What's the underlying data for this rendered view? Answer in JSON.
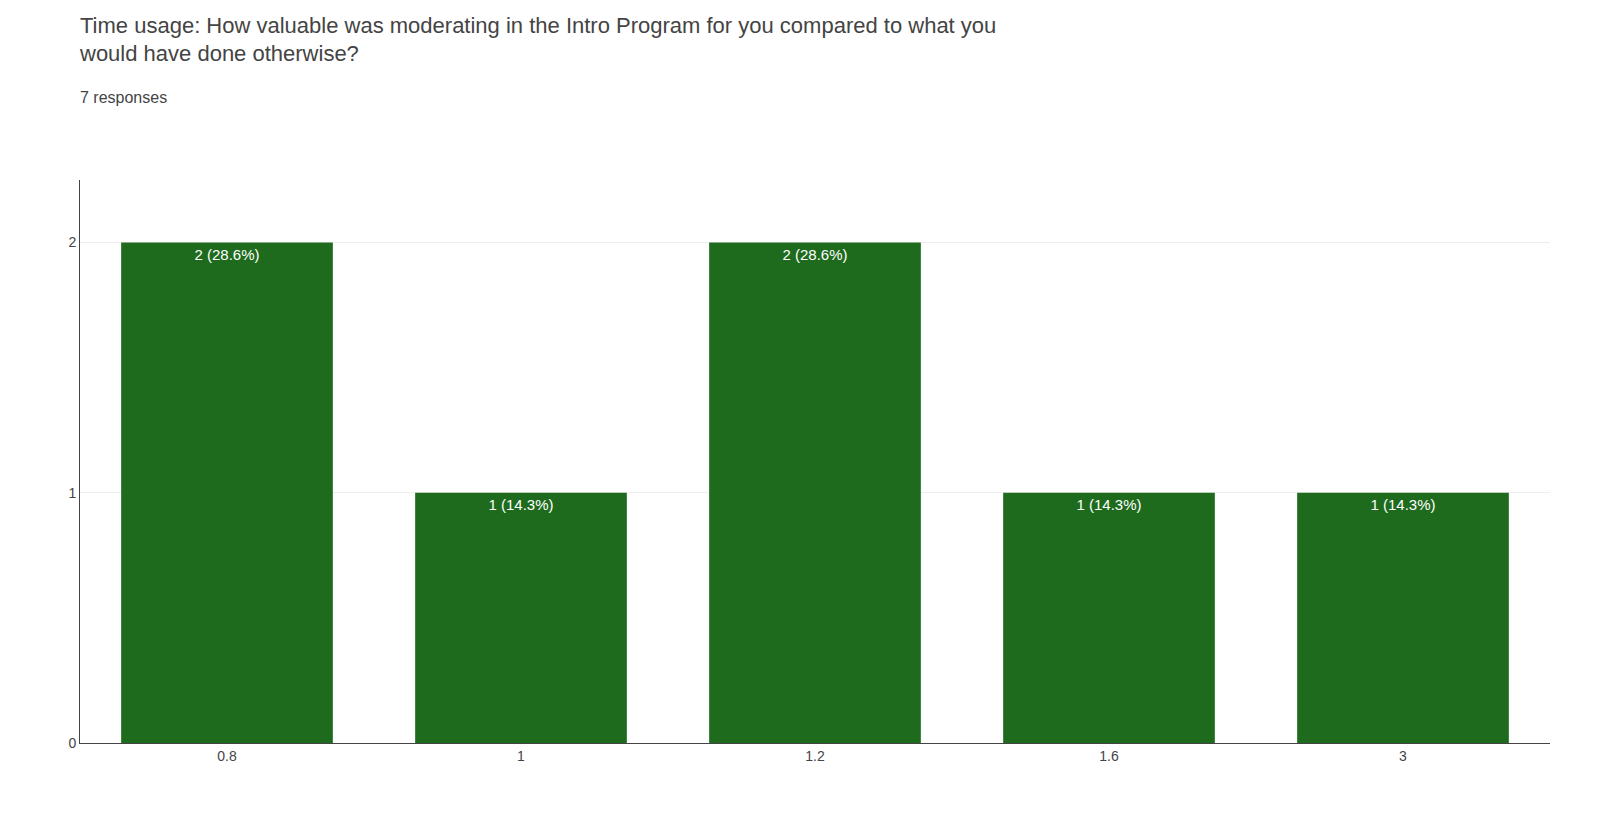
{
  "chart_data": {
    "type": "bar",
    "title": "Time usage: How valuable was moderating in the Intro Program for you compared to what you\nwould have done otherwise?",
    "subtitle": "7 responses",
    "categories": [
      "0.8",
      "1",
      "1.2",
      "1.6",
      "3"
    ],
    "values": [
      2,
      1,
      2,
      1,
      1
    ],
    "value_labels": [
      "2 (28.6%)",
      "1 (14.3%)",
      "2 (28.6%)",
      "1 (14.3%)",
      "1 (14.3%)"
    ],
    "data_labels": true,
    "color": "#1e6b1e",
    "ylim": [
      0,
      2.25
    ],
    "yticks": [
      0,
      1,
      2
    ],
    "grid": true
  }
}
